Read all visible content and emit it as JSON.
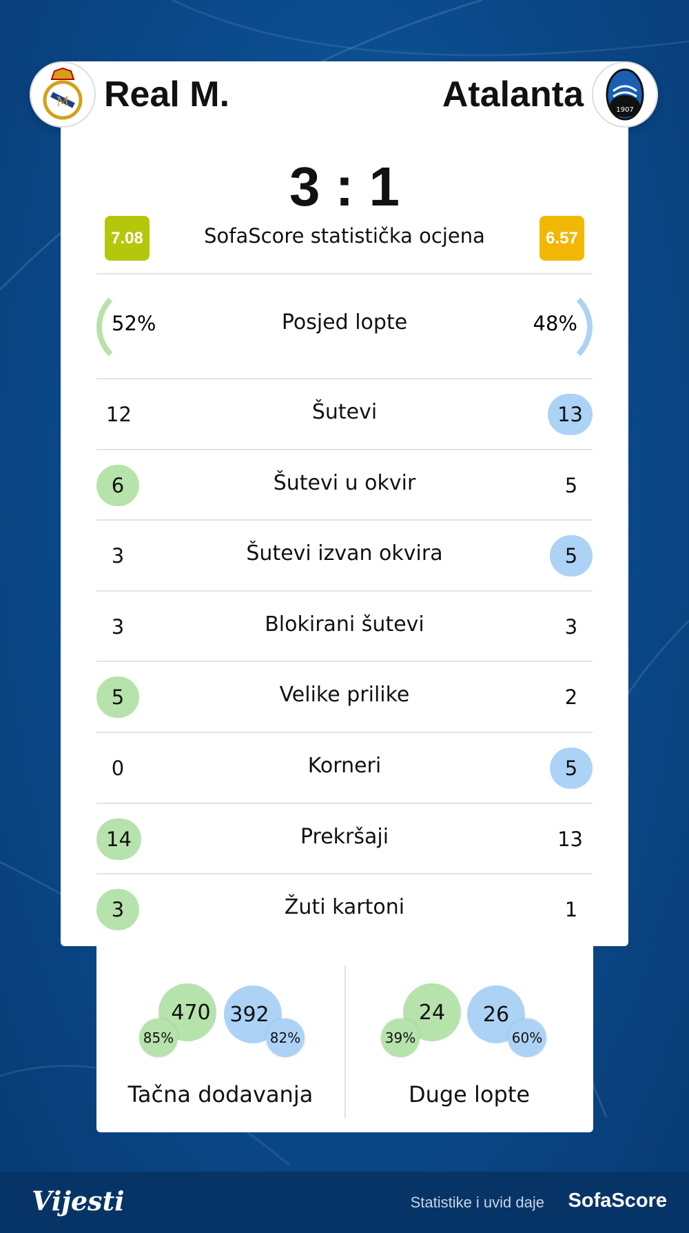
{
  "home": {
    "name": "Real M.",
    "rating": "7.08",
    "rating_color": "#b5c70a",
    "possession": "52%",
    "logo": "real-madrid-crest"
  },
  "away": {
    "name": "Atalanta",
    "rating": "6.57",
    "rating_color": "#f2b705",
    "possession": "48%",
    "logo": "atalanta-crest",
    "logo_text": "ATALANTA 1907"
  },
  "score": "3 : 1",
  "rating_label": "SofaScore statistička ocjena",
  "possession_label": "Posjed lopte",
  "colors": {
    "home": "#b6e2ab",
    "away": "#acd3f6"
  },
  "stats": [
    {
      "label": "Šutevi",
      "home": "12",
      "away": "13",
      "highlight": "away"
    },
    {
      "label": "Šutevi u okvir",
      "home": "6",
      "away": "5",
      "highlight": "home"
    },
    {
      "label": "Šutevi izvan okvira",
      "home": "3",
      "away": "5",
      "highlight": "away"
    },
    {
      "label": "Blokirani šutevi",
      "home": "3",
      "away": "3",
      "highlight": "none"
    },
    {
      "label": "Velike prilike",
      "home": "5",
      "away": "2",
      "highlight": "home"
    },
    {
      "label": "Korneri",
      "home": "0",
      "away": "5",
      "highlight": "away"
    },
    {
      "label": "Prekršaji",
      "home": "14",
      "away": "13",
      "highlight": "home"
    },
    {
      "label": "Žuti kartoni",
      "home": "3",
      "away": "1",
      "highlight": "home"
    }
  ],
  "passes": {
    "label": "Tačna dodavanja",
    "home": "470",
    "home_pct": "85%",
    "away": "392",
    "away_pct": "82%"
  },
  "long_balls": {
    "label": "Duge lopte",
    "home": "24",
    "home_pct": "39%",
    "away": "26",
    "away_pct": "60%"
  },
  "footer": {
    "brand": "Vijesti",
    "credit": "Statistike i uvid daje",
    "provider": "SofaScore"
  }
}
